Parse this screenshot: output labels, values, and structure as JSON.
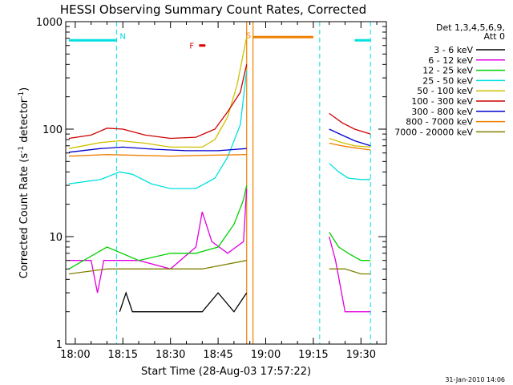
{
  "chart_data": {
    "type": "line",
    "title": "HESSI Observing Summary Count Rates, Corrected",
    "xlabel": "Start Time (28-Aug-03 17:57:22)",
    "ylabel_main": "Corrected Count Rate (s",
    "ylabel_sup1": "-1",
    "ylabel_mid": " detector",
    "ylabel_sup2": "-1",
    "ylabel_end": ")",
    "y_scale": "log",
    "ylim": [
      1,
      1000
    ],
    "xlim_minutes": [
      -3,
      98
    ],
    "x_ticks": [
      {
        "value": 0,
        "label": "18:00"
      },
      {
        "value": 15,
        "label": "18:15"
      },
      {
        "value": 30,
        "label": "18:30"
      },
      {
        "value": 45,
        "label": "18:45"
      },
      {
        "value": 60,
        "label": "19:00"
      },
      {
        "value": 75,
        "label": "19:15"
      },
      {
        "value": 90,
        "label": "19:30"
      }
    ],
    "y_ticks": [
      {
        "value": 1,
        "label": "1"
      },
      {
        "value": 10,
        "label": "10"
      },
      {
        "value": 100,
        "label": "100"
      },
      {
        "value": 1000,
        "label": "1000"
      }
    ],
    "legend_title": [
      "Det 1,3,4,5,6,9,",
      "Att 0"
    ],
    "legend_placement": "right",
    "series": [
      {
        "name": "3 - 6 keV",
        "color": "#000000",
        "segments": [
          [
            [
              14,
              2
            ],
            [
              16,
              3
            ],
            [
              18,
              2
            ],
            [
              25,
              2
            ],
            [
              35,
              2
            ],
            [
              40,
              2
            ],
            [
              45,
              3
            ],
            [
              50,
              2
            ],
            [
              54,
              3
            ]
          ]
        ]
      },
      {
        "name": "6 - 12 keV",
        "color": "#e000e0",
        "segments": [
          [
            [
              -2,
              6
            ],
            [
              5,
              6
            ],
            [
              7,
              3
            ],
            [
              9,
              6
            ],
            [
              20,
              6
            ],
            [
              30,
              5
            ],
            [
              38,
              8
            ],
            [
              40,
              17
            ],
            [
              43,
              9
            ],
            [
              48,
              7
            ],
            [
              53,
              9
            ],
            [
              54,
              28
            ]
          ],
          [
            [
              80,
              10
            ],
            [
              82,
              6
            ],
            [
              85,
              2
            ],
            [
              89,
              2
            ],
            [
              93,
              2
            ]
          ]
        ]
      },
      {
        "name": "12 - 25 keV",
        "color": "#00d000",
        "segments": [
          [
            [
              -2,
              5
            ],
            [
              10,
              8
            ],
            [
              20,
              6
            ],
            [
              30,
              7
            ],
            [
              38,
              7
            ],
            [
              45,
              8
            ],
            [
              50,
              13
            ],
            [
              53,
              22
            ],
            [
              54,
              30
            ]
          ],
          [
            [
              80,
              11
            ],
            [
              83,
              8
            ],
            [
              86,
              7
            ],
            [
              90,
              6
            ],
            [
              93,
              6
            ]
          ]
        ]
      },
      {
        "name": "25 - 50 keV",
        "color": "#00e0e0",
        "segments": [
          [
            [
              -2,
              31
            ],
            [
              8,
              34
            ],
            [
              14,
              40
            ],
            [
              18,
              38
            ],
            [
              24,
              31
            ],
            [
              30,
              28
            ],
            [
              38,
              28
            ],
            [
              44,
              35
            ],
            [
              48,
              55
            ],
            [
              52,
              110
            ],
            [
              54,
              350
            ]
          ],
          [
            [
              80,
              48
            ],
            [
              83,
              40
            ],
            [
              86,
              35
            ],
            [
              90,
              34
            ],
            [
              93,
              34
            ]
          ]
        ]
      },
      {
        "name": "50 - 100 keV",
        "color": "#d0c000",
        "segments": [
          [
            [
              -2,
              66
            ],
            [
              8,
              75
            ],
            [
              14,
              78
            ],
            [
              22,
              74
            ],
            [
              30,
              68
            ],
            [
              40,
              68
            ],
            [
              44,
              80
            ],
            [
              48,
              130
            ],
            [
              51,
              260
            ],
            [
              54,
              720
            ]
          ],
          [
            [
              80,
              82
            ],
            [
              84,
              75
            ],
            [
              88,
              70
            ],
            [
              93,
              68
            ]
          ]
        ]
      },
      {
        "name": "100 - 300 keV",
        "color": "#d00000",
        "segments": [
          [
            [
              -2,
              82
            ],
            [
              5,
              88
            ],
            [
              10,
              102
            ],
            [
              15,
              100
            ],
            [
              22,
              88
            ],
            [
              30,
              82
            ],
            [
              38,
              84
            ],
            [
              44,
              100
            ],
            [
              48,
              145
            ],
            [
              52,
              220
            ],
            [
              54,
              400
            ]
          ],
          [
            [
              80,
              140
            ],
            [
              84,
              115
            ],
            [
              88,
              100
            ],
            [
              93,
              90
            ]
          ]
        ]
      },
      {
        "name": "300 - 800 keV",
        "color": "#0000d0",
        "segments": [
          [
            [
              -2,
              61
            ],
            [
              8,
              66
            ],
            [
              15,
              68
            ],
            [
              25,
              65
            ],
            [
              35,
              63
            ],
            [
              45,
              63
            ],
            [
              54,
              66
            ]
          ],
          [
            [
              80,
              100
            ],
            [
              84,
              88
            ],
            [
              88,
              78
            ],
            [
              93,
              70
            ]
          ]
        ]
      },
      {
        "name": "800 - 7000 keV",
        "color": "#f08000",
        "segments": [
          [
            [
              -2,
              56
            ],
            [
              10,
              58
            ],
            [
              20,
              57
            ],
            [
              30,
              56
            ],
            [
              40,
              57
            ],
            [
              54,
              58
            ]
          ],
          [
            [
              80,
              74
            ],
            [
              84,
              70
            ],
            [
              88,
              67
            ],
            [
              93,
              64
            ]
          ]
        ]
      },
      {
        "name": "7000 - 20000 keV",
        "color": "#808000",
        "segments": [
          [
            [
              -2,
              4.5
            ],
            [
              10,
              5
            ],
            [
              20,
              5
            ],
            [
              30,
              5
            ],
            [
              40,
              5
            ],
            [
              54,
              6
            ]
          ],
          [
            [
              80,
              5
            ],
            [
              85,
              5
            ],
            [
              90,
              4.5
            ],
            [
              93,
              4.5
            ]
          ]
        ]
      }
    ],
    "annotations": {
      "night_label": "N",
      "saa_label": "S",
      "flare_label": "F",
      "night_flag_color": "#00e0e0",
      "saa_flag_color": "#f08000",
      "flare_flag_color": "#e00000",
      "night_flags_minutes": [
        [
          -2,
          13
        ],
        [
          88,
          93
        ]
      ],
      "saa_flag_minutes": [
        [
          56,
          75
        ]
      ],
      "flare_flag_minutes": [
        [
          39,
          41
        ]
      ],
      "night_lines_minutes": [
        13,
        77,
        93
      ],
      "saa_lines_minutes": [
        54,
        56
      ],
      "flare_y": 600,
      "flag_y": 670
    }
  },
  "timestamp": "31-Jan-2010 14:06"
}
